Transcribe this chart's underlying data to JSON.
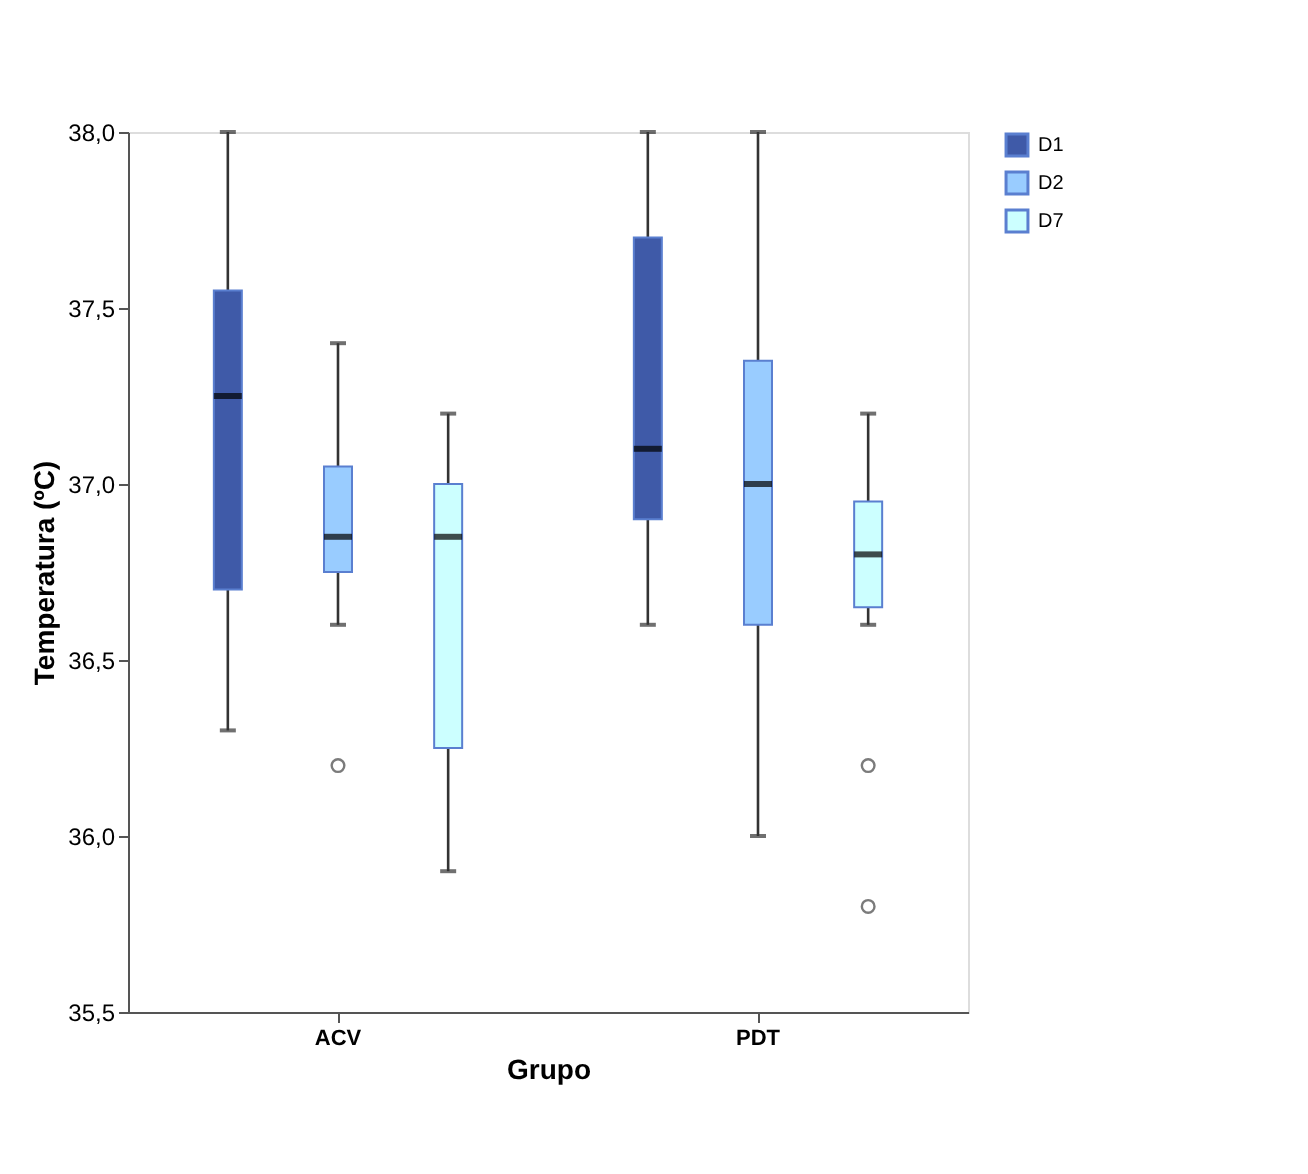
{
  "chart_data": {
    "type": "box",
    "xlabel": "Grupo",
    "ylabel": "Temperatura (ºC)",
    "categories": [
      "ACV",
      "PDT"
    ],
    "ylim": [
      35.5,
      38.0
    ],
    "yticks": [
      {
        "value": 35.5,
        "label": "35,5"
      },
      {
        "value": 36.0,
        "label": "36,0"
      },
      {
        "value": 36.5,
        "label": "36,5"
      },
      {
        "value": 37.0,
        "label": "37,0"
      },
      {
        "value": 37.5,
        "label": "37,5"
      },
      {
        "value": 38.0,
        "label": "38,0"
      }
    ],
    "grid": false,
    "legend": "top right",
    "marker": "circle",
    "series": [
      {
        "name": "D1",
        "color": "#3f5aa8",
        "boxes": [
          {
            "low": 36.3,
            "q1": 36.7,
            "median": 37.25,
            "q3": 37.55,
            "high": 38.0
          },
          {
            "low": 36.6,
            "q1": 36.9,
            "median": 37.1,
            "q3": 37.7,
            "high": 38.0
          }
        ]
      },
      {
        "name": "D2",
        "color": "#99ccff",
        "boxes": [
          {
            "low": 36.6,
            "q1": 36.75,
            "median": 36.85,
            "q3": 37.05,
            "high": 37.4,
            "outliers": [
              36.2
            ]
          },
          {
            "low": 36.0,
            "q1": 36.6,
            "median": 37.0,
            "q3": 37.35,
            "high": 38.0
          }
        ]
      },
      {
        "name": "D7",
        "color": "#ccffff",
        "boxes": [
          {
            "low": 35.9,
            "q1": 36.25,
            "median": 36.85,
            "q3": 37.0,
            "high": 37.2
          },
          {
            "low": 36.6,
            "q1": 36.65,
            "median": 36.8,
            "q3": 36.95,
            "high": 37.2,
            "outliers": [
              36.2,
              35.8
            ]
          }
        ]
      }
    ]
  }
}
